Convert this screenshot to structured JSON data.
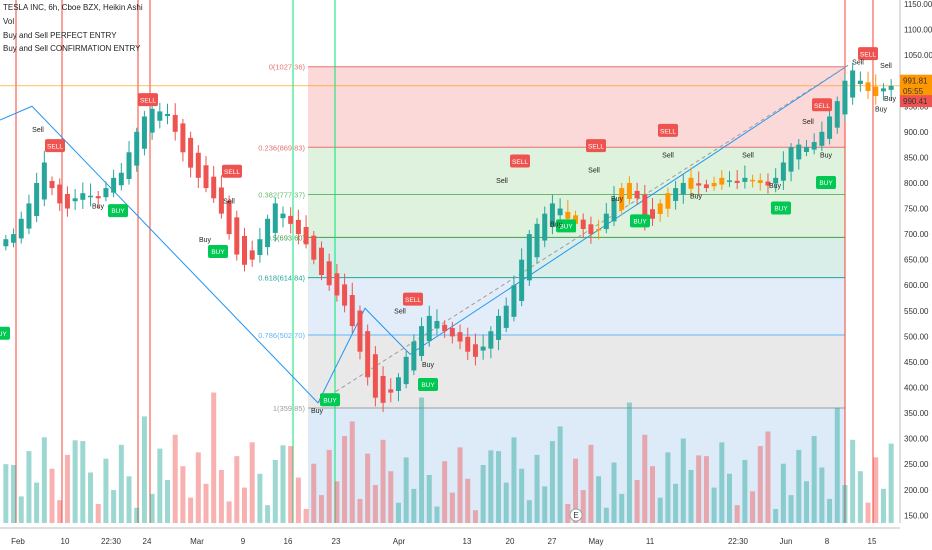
{
  "header": {
    "line1": "TESLA INC, 6h, Cboe BZX, Heikin Ashi",
    "line2": "Vol",
    "line3": "Buy and Sell PERFECT ENTRY",
    "line4": "Buy and Sell CONFIRMATION ENTRY"
  },
  "colors": {
    "up": "#26a69a",
    "down": "#ef5350",
    "orange": "#ff9800",
    "green_bright": "#00c853",
    "red_line": "#f44336",
    "green_line": "#00e676",
    "trend": "#2196f3"
  },
  "chart_data": {
    "type": "candlestick",
    "ylim": [
      135,
      1150
    ],
    "y_ticks": [
      150,
      200,
      250,
      300,
      350,
      400,
      450,
      500,
      550,
      600,
      650,
      700,
      750,
      800,
      850,
      900,
      950,
      1000,
      1050,
      1100,
      1150
    ],
    "x_ticks": [
      "Feb",
      "10",
      "22:30",
      "24",
      "Mar",
      "9",
      "16",
      "23",
      "Apr",
      "13",
      "20",
      "27",
      "May",
      "11",
      "22:30",
      "Jun",
      "8",
      "15"
    ],
    "price_labels": {
      "high": "991.81",
      "countdown": "05:55",
      "current": "990.41"
    },
    "event_marker": "E",
    "fib_levels": [
      {
        "label": "0(1027.36)",
        "price": 1027.36
      },
      {
        "label": "0.236(869.83)",
        "price": 869.83
      },
      {
        "label": "0.382(777.37)",
        "price": 777.37
      },
      {
        "label": "0.5(693.60)",
        "price": 693.6
      },
      {
        "label": "0.618(614.84)",
        "price": 614.84
      },
      {
        "label": "0.786(502.70)",
        "price": 502.7
      },
      {
        "label": "1(359.85)",
        "price": 359.85
      }
    ],
    "closes": [
      690,
      700,
      730,
      760,
      800,
      840,
      790,
      760,
      750,
      770,
      780,
      775,
      770,
      790,
      810,
      820,
      860,
      900,
      930,
      945,
      940,
      935,
      900,
      860,
      830,
      810,
      790,
      770,
      740,
      700,
      660,
      640,
      650,
      690,
      730,
      760,
      740,
      720,
      700,
      680,
      650,
      620,
      600,
      580,
      560,
      520,
      470,
      420,
      380,
      370,
      390,
      420,
      460,
      490,
      520,
      540,
      530,
      510,
      500,
      490,
      470,
      460,
      480,
      510,
      540,
      560,
      600,
      650,
      700,
      720,
      740,
      760,
      750,
      730,
      720,
      710,
      700,
      710,
      740,
      770,
      790,
      800,
      770,
      720,
      730,
      760,
      780,
      790,
      800,
      810,
      795,
      790,
      800,
      810,
      805,
      800,
      810,
      805,
      800,
      795,
      810,
      840,
      870,
      875,
      870,
      880,
      900,
      930,
      960,
      1000,
      1020,
      1000,
      980,
      970,
      985,
      990
    ]
  },
  "signals": {
    "sell_badge": "SELL",
    "buy_badge": "BUY",
    "sell_text": "Sell",
    "buy_text": "Buy"
  }
}
